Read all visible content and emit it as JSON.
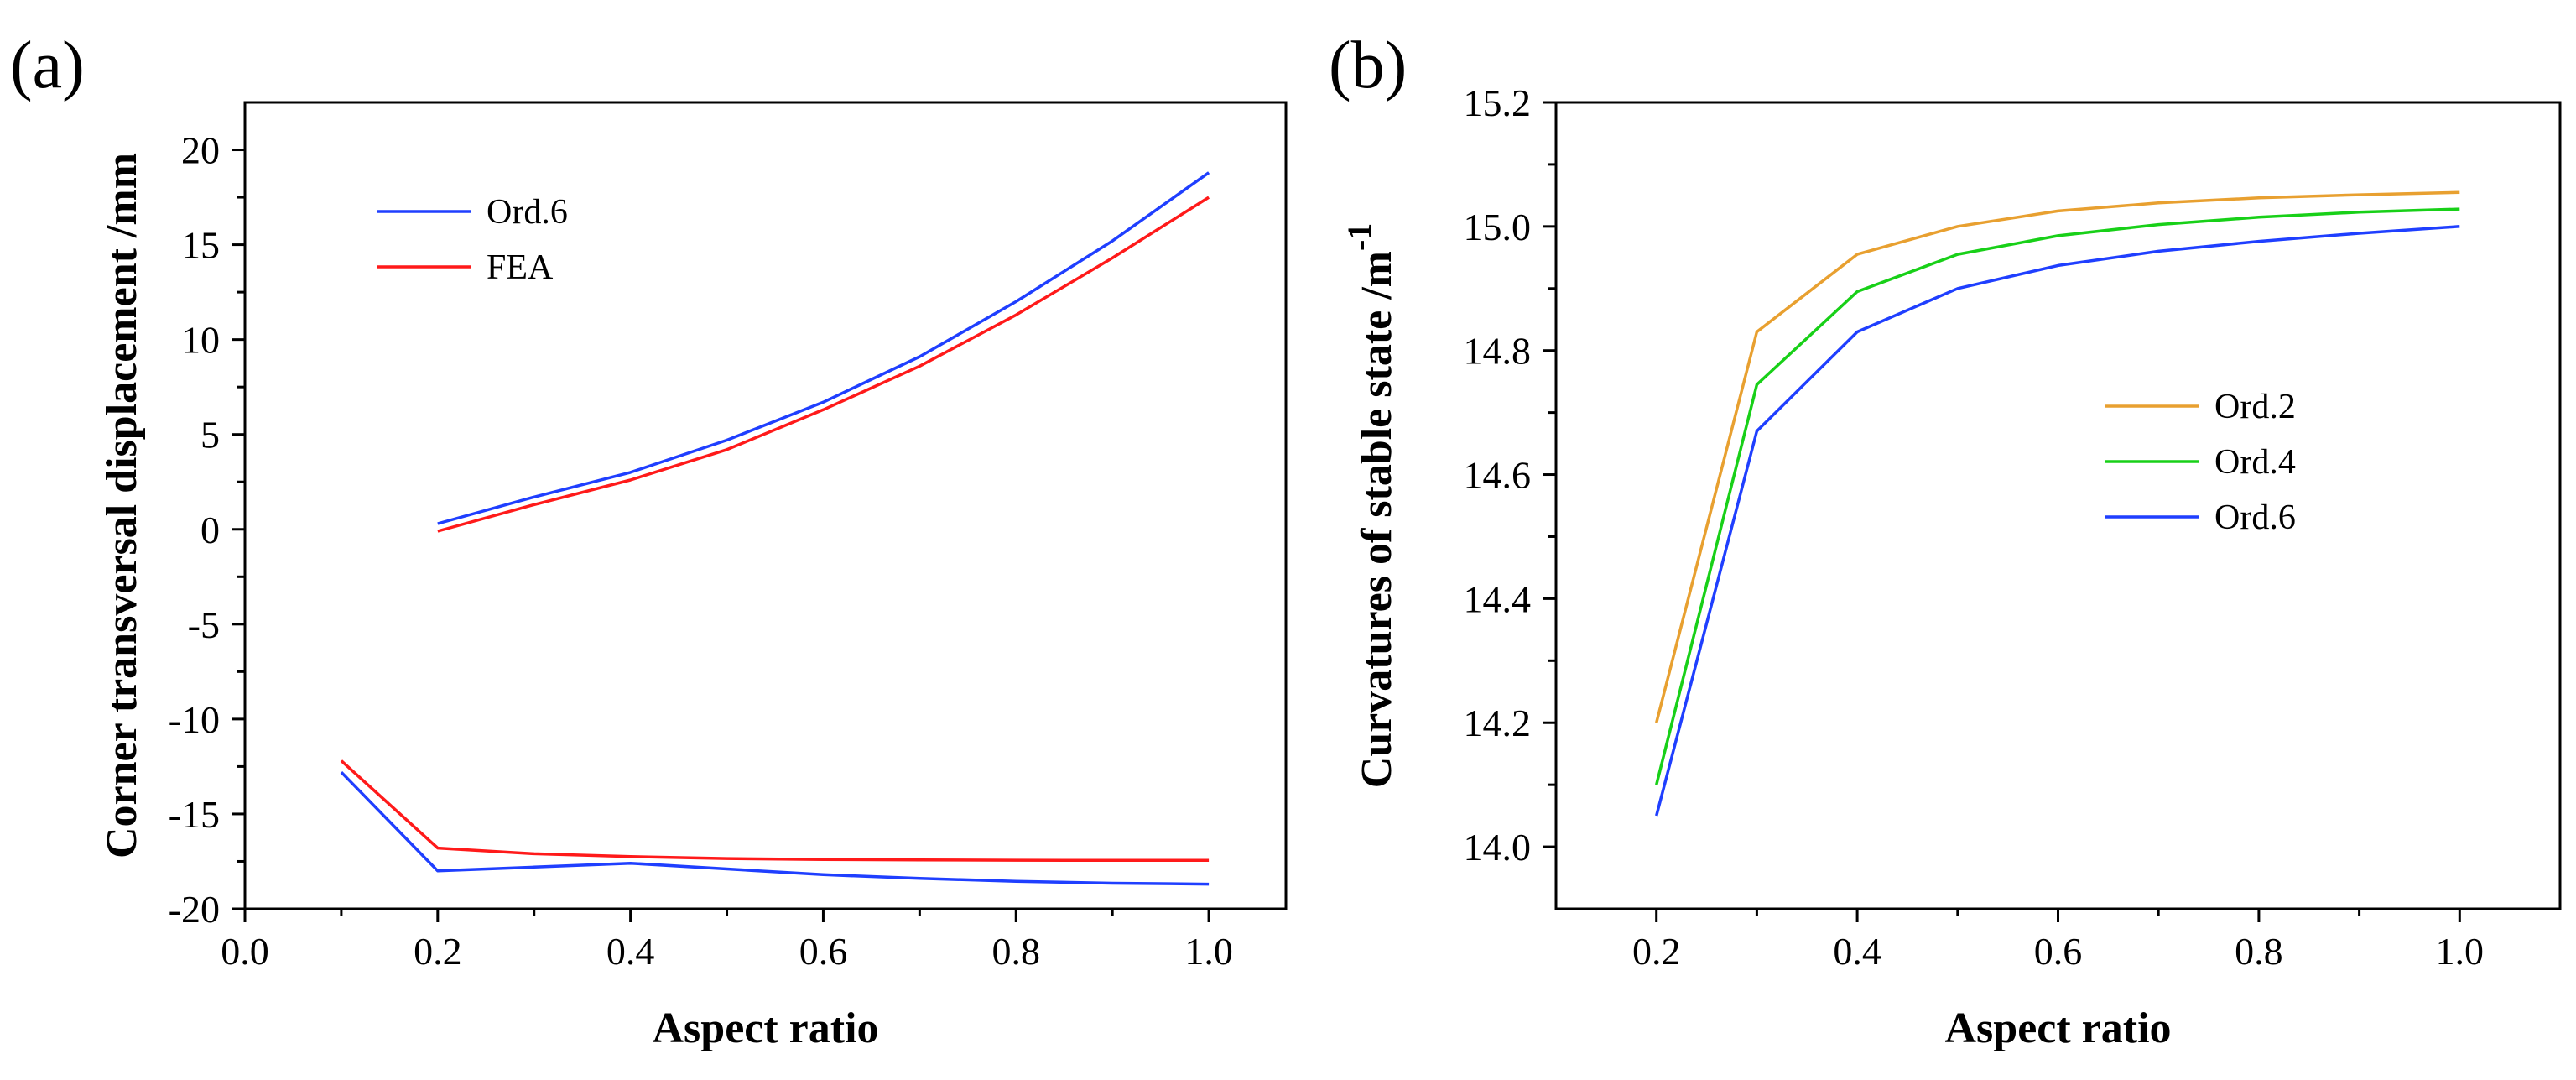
{
  "chart_data": [
    {
      "panel": "(a)",
      "type": "line",
      "title": "",
      "xlabel": "Aspect ratio",
      "ylabel": "Corner transversal displacement /mm",
      "xlim": [
        0.0,
        1.08
      ],
      "ylim": [
        -20,
        22.5
      ],
      "xticks": [
        0.0,
        0.2,
        0.4,
        0.6,
        0.8,
        1.0
      ],
      "xtick_labels": [
        "0.0",
        "0.2",
        "0.4",
        "0.6",
        "0.8",
        "1.0"
      ],
      "yticks": [
        -20,
        -15,
        -10,
        -5,
        0,
        5,
        10,
        15,
        20
      ],
      "ytick_labels": [
        "-20",
        "-15",
        "-10",
        "-5",
        "0",
        "5",
        "10",
        "15",
        "20"
      ],
      "legend_position": "top-left",
      "series": [
        {
          "name": "Ord.6",
          "color": "#1f3fff",
          "legend": true,
          "x": [
            0.2,
            0.3,
            0.4,
            0.5,
            0.6,
            0.7,
            0.8,
            0.9,
            1.0
          ],
          "y": [
            0.3,
            1.7,
            3.0,
            4.7,
            6.7,
            9.1,
            12.0,
            15.2,
            18.8
          ]
        },
        {
          "name": "FEA",
          "color": "#ff1a1a",
          "legend": true,
          "x": [
            0.2,
            0.3,
            0.4,
            0.5,
            0.6,
            0.7,
            0.8,
            0.9,
            1.0
          ],
          "y": [
            -0.1,
            1.3,
            2.6,
            4.2,
            6.3,
            8.6,
            11.3,
            14.3,
            17.5
          ]
        },
        {
          "name": "Ord.6",
          "color": "#1f3fff",
          "legend": false,
          "x": [
            0.1,
            0.2,
            0.3,
            0.4,
            0.5,
            0.6,
            0.7,
            0.8,
            0.9,
            1.0
          ],
          "y": [
            -12.8,
            -18.0,
            -17.8,
            -17.6,
            -17.9,
            -18.2,
            -18.4,
            -18.55,
            -18.65,
            -18.7
          ]
        },
        {
          "name": "FEA",
          "color": "#ff1a1a",
          "legend": false,
          "x": [
            0.1,
            0.2,
            0.3,
            0.4,
            0.5,
            0.6,
            0.7,
            0.8,
            0.9,
            1.0
          ],
          "y": [
            -12.2,
            -16.8,
            -17.1,
            -17.25,
            -17.35,
            -17.4,
            -17.42,
            -17.44,
            -17.45,
            -17.45
          ]
        }
      ]
    },
    {
      "panel": "(b)",
      "type": "line",
      "title": "",
      "xlabel": "Aspect ratio",
      "ylabel": "Curvatures of stable state /m",
      "ylabel_superscript": "-1",
      "xlim": [
        0.1,
        1.1
      ],
      "ylim": [
        13.9,
        15.2
      ],
      "xticks": [
        0.2,
        0.4,
        0.6,
        0.8,
        1.0
      ],
      "xtick_labels": [
        "0.2",
        "0.4",
        "0.6",
        "0.8",
        "1.0"
      ],
      "yticks": [
        14.0,
        14.2,
        14.4,
        14.6,
        14.8,
        15.0,
        15.2
      ],
      "ytick_labels": [
        "14.0",
        "14.2",
        "14.4",
        "14.6",
        "14.8",
        "15.0",
        "15.2"
      ],
      "legend_position": "center-right",
      "series": [
        {
          "name": "Ord.2",
          "color": "#e8a030",
          "legend": true,
          "x": [
            0.2,
            0.3,
            0.4,
            0.5,
            0.6,
            0.7,
            0.8,
            0.9,
            1.0
          ],
          "y": [
            14.2,
            14.83,
            14.955,
            15.0,
            15.025,
            15.038,
            15.046,
            15.051,
            15.055
          ]
        },
        {
          "name": "Ord.4",
          "color": "#18d018",
          "legend": true,
          "x": [
            0.2,
            0.3,
            0.4,
            0.5,
            0.6,
            0.7,
            0.8,
            0.9,
            1.0
          ],
          "y": [
            14.1,
            14.745,
            14.895,
            14.955,
            14.985,
            15.003,
            15.015,
            15.023,
            15.028
          ]
        },
        {
          "name": "Ord.6",
          "color": "#1f3fff",
          "legend": true,
          "x": [
            0.2,
            0.3,
            0.4,
            0.5,
            0.6,
            0.7,
            0.8,
            0.9,
            1.0
          ],
          "y": [
            14.05,
            14.67,
            14.83,
            14.9,
            14.937,
            14.96,
            14.976,
            14.989,
            15.0
          ]
        }
      ]
    }
  ]
}
